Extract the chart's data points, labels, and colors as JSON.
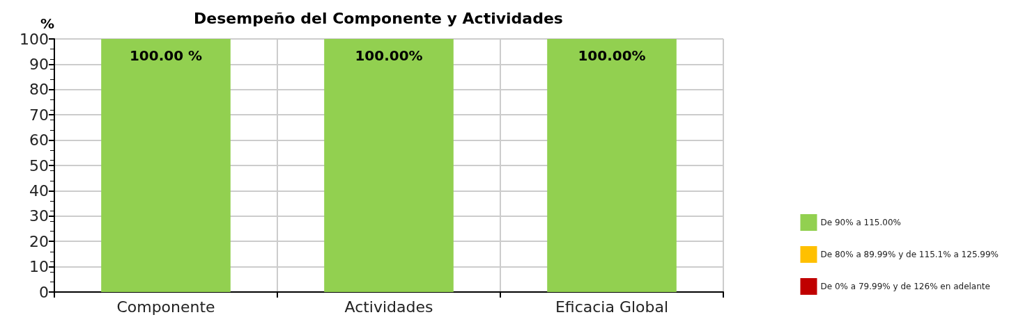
{
  "chart_data": {
    "type": "bar",
    "title": "Desempeño del Componente y Actividades",
    "ylabel": "%",
    "categories": [
      "Componente",
      "Actividades",
      "Eficacia Global"
    ],
    "series": [
      {
        "name": "De 90% a 115.00%",
        "color": "#92d050",
        "values": [
          100,
          100,
          100
        ],
        "value_labels": [
          "100.00 %",
          "100.00%",
          "100.00%"
        ]
      },
      {
        "name": "De 80% a 89.99% y de 115.1% a 125.99%",
        "color": "#ffc000",
        "values": [
          null,
          null,
          null
        ]
      },
      {
        "name": "De 0% a 79.99% y de 126% en adelante",
        "color": "#c00000",
        "values": [
          null,
          null,
          null
        ]
      }
    ],
    "ylim": [
      0,
      100
    ],
    "yticks": [
      0,
      10,
      20,
      30,
      40,
      50,
      60,
      70,
      80,
      90,
      100
    ],
    "grid": true,
    "legend": "right"
  }
}
